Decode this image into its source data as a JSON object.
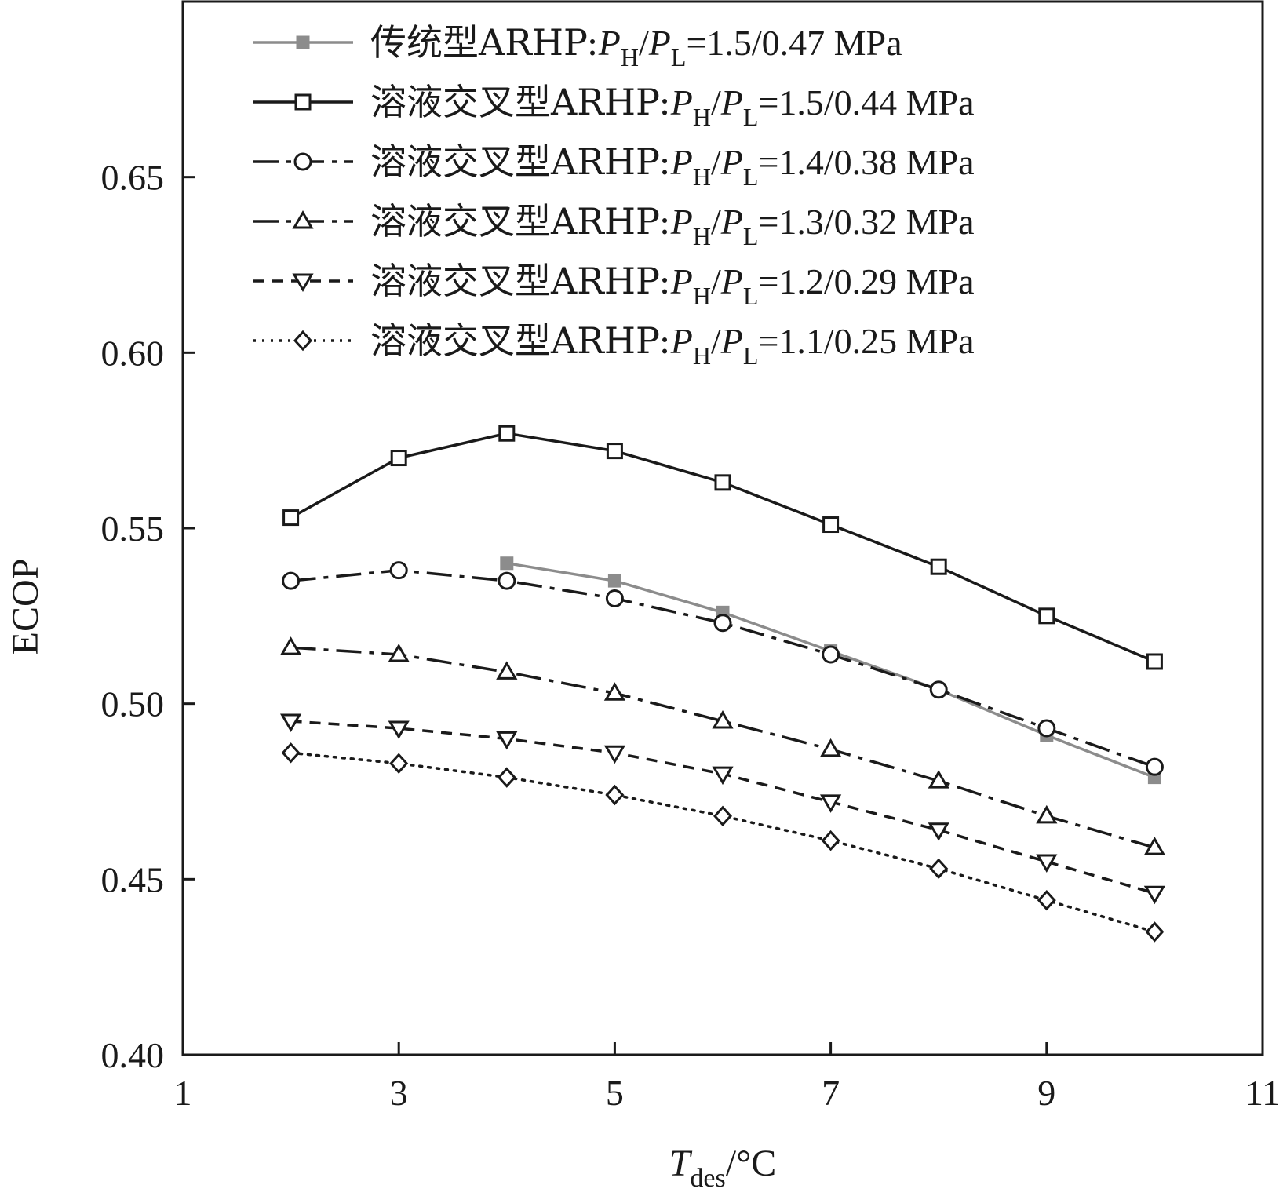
{
  "chart_data": {
    "type": "line",
    "title": "",
    "xlabel": {
      "symbol": "T",
      "subscript": "des",
      "unit": "/°C"
    },
    "ylabel": "ECOP",
    "xlim": [
      1,
      11
    ],
    "ylim": [
      0.4,
      0.7
    ],
    "xticks": [
      1,
      3,
      5,
      7,
      9,
      11
    ],
    "yticks": [
      0.4,
      0.45,
      0.5,
      0.55,
      0.6,
      0.65
    ],
    "ytick_labels": [
      "0.40",
      "0.45",
      "0.50",
      "0.55",
      "0.60",
      "0.65"
    ],
    "grid": false,
    "legend_position": "top",
    "series": [
      {
        "prefix": "传统型ARHP:",
        "pressure": "1.5/0.47 MPa",
        "marker": "filled-square",
        "line_style": "solid",
        "color": "#8c8c8c",
        "x": [
          4,
          5,
          6,
          7,
          8,
          9,
          10
        ],
        "y": [
          0.54,
          0.535,
          0.526,
          0.515,
          0.504,
          0.491,
          0.479
        ]
      },
      {
        "prefix": "溶液交叉型ARHP:",
        "pressure": "1.5/0.44 MPa",
        "marker": "open-square",
        "line_style": "solid",
        "color": "#1a1a1a",
        "x": [
          2,
          3,
          4,
          5,
          6,
          7,
          8,
          9,
          10
        ],
        "y": [
          0.553,
          0.57,
          0.577,
          0.572,
          0.563,
          0.551,
          0.539,
          0.525,
          0.512
        ]
      },
      {
        "prefix": "溶液交叉型ARHP:",
        "pressure": "1.4/0.38 MPa",
        "marker": "open-circle",
        "line_style": "dash-dot",
        "color": "#1a1a1a",
        "x": [
          2,
          3,
          4,
          5,
          6,
          7,
          8,
          9,
          10
        ],
        "y": [
          0.535,
          0.538,
          0.535,
          0.53,
          0.523,
          0.514,
          0.504,
          0.493,
          0.482
        ]
      },
      {
        "prefix": "溶液交叉型ARHP:",
        "pressure": "1.3/0.32 MPa",
        "marker": "open-triangle-up",
        "line_style": "dash-dot",
        "color": "#1a1a1a",
        "x": [
          2,
          3,
          4,
          5,
          6,
          7,
          8,
          9,
          10
        ],
        "y": [
          0.516,
          0.514,
          0.509,
          0.503,
          0.495,
          0.487,
          0.478,
          0.468,
          0.459
        ]
      },
      {
        "prefix": "溶液交叉型ARHP:",
        "pressure": "1.2/0.29 MPa",
        "marker": "open-triangle-down",
        "line_style": "dashed",
        "color": "#1a1a1a",
        "x": [
          2,
          3,
          4,
          5,
          6,
          7,
          8,
          9,
          10
        ],
        "y": [
          0.495,
          0.493,
          0.49,
          0.486,
          0.48,
          0.472,
          0.464,
          0.455,
          0.446
        ]
      },
      {
        "prefix": "溶液交叉型ARHP:",
        "pressure": "1.1/0.25 MPa",
        "marker": "open-diamond",
        "line_style": "dotted",
        "color": "#1a1a1a",
        "x": [
          2,
          3,
          4,
          5,
          6,
          7,
          8,
          9,
          10
        ],
        "y": [
          0.486,
          0.483,
          0.479,
          0.474,
          0.468,
          0.461,
          0.453,
          0.444,
          0.435
        ]
      }
    ]
  }
}
